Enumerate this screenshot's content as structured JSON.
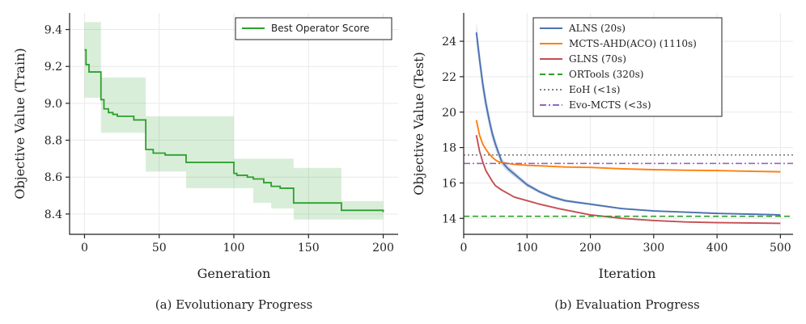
{
  "chart_data": [
    {
      "type": "line",
      "title": "",
      "caption": "(a) Evolutionary Progress",
      "xlabel": "Generation",
      "ylabel": "Objective Value (Train)",
      "xlim": [
        -10,
        210
      ],
      "ylim": [
        8.29,
        9.49
      ],
      "xticks": [
        0,
        50,
        100,
        150,
        200
      ],
      "xtick_labels": [
        "0",
        "50",
        "100",
        "150",
        "200"
      ],
      "yticks": [
        8.4,
        8.6,
        8.8,
        9.0,
        9.2,
        9.4
      ],
      "ytick_labels": [
        "8.4",
        "8.6",
        "8.8",
        "9.0",
        "9.2",
        "9.4"
      ],
      "grid": true,
      "legend_position": "top-right",
      "series": [
        {
          "name": "Best Operator Score",
          "color": "#2ca02c",
          "style": "step",
          "x": [
            0,
            1,
            3,
            11,
            13,
            16,
            19,
            22,
            28,
            33,
            40,
            41,
            46,
            50,
            54,
            58,
            68,
            100,
            102,
            109,
            113,
            116,
            120,
            125,
            130,
            131,
            140,
            170,
            172,
            200
          ],
          "y": [
            9.29,
            9.21,
            9.17,
            9.02,
            8.97,
            8.95,
            8.94,
            8.93,
            8.93,
            8.91,
            8.91,
            8.75,
            8.73,
            8.73,
            8.72,
            8.72,
            8.68,
            8.62,
            8.61,
            8.6,
            8.59,
            8.59,
            8.57,
            8.55,
            8.55,
            8.54,
            8.46,
            8.46,
            8.42,
            8.41
          ],
          "band_upper": [
            9.44,
            9.44,
            9.44,
            9.14,
            9.14,
            9.14,
            9.14,
            9.14,
            9.14,
            9.14,
            9.14,
            8.93,
            8.93,
            8.93,
            8.93,
            8.93,
            8.93,
            8.7,
            8.7,
            8.7,
            8.7,
            8.7,
            8.7,
            8.7,
            8.7,
            8.7,
            8.65,
            8.65,
            8.47,
            8.47
          ],
          "band_lower": [
            9.03,
            9.03,
            9.03,
            8.84,
            8.84,
            8.84,
            8.84,
            8.84,
            8.84,
            8.84,
            8.84,
            8.63,
            8.63,
            8.63,
            8.63,
            8.63,
            8.54,
            8.54,
            8.54,
            8.54,
            8.46,
            8.46,
            8.46,
            8.43,
            8.43,
            8.43,
            8.37,
            8.37,
            8.37,
            8.37
          ]
        }
      ]
    },
    {
      "type": "line",
      "title": "",
      "caption": "(b) Evaluation Progress",
      "xlabel": "Iteration",
      "ylabel": "Objective Value (Test)",
      "xlim": [
        0,
        520
      ],
      "ylim": [
        13.1,
        25.6
      ],
      "xticks": [
        0,
        100,
        200,
        300,
        400,
        500
      ],
      "xtick_labels": [
        "0",
        "100",
        "200",
        "300",
        "400",
        "500"
      ],
      "yticks": [
        14,
        16,
        18,
        20,
        22,
        24
      ],
      "ytick_labels": [
        "14",
        "16",
        "18",
        "20",
        "22",
        "24"
      ],
      "grid": true,
      "legend_position": "top-center",
      "series": [
        {
          "name": "ALNS (20s)",
          "color": "#4c72b0",
          "style": "solid",
          "band": true,
          "x": [
            20,
            25,
            30,
            35,
            40,
            45,
            50,
            55,
            60,
            70,
            80,
            90,
            100,
            120,
            140,
            160,
            180,
            200,
            250,
            300,
            350,
            400,
            450,
            500
          ],
          "y": [
            24.5,
            23.0,
            21.6,
            20.5,
            19.6,
            18.8,
            18.2,
            17.7,
            17.2,
            16.8,
            16.5,
            16.2,
            15.9,
            15.5,
            15.2,
            15.0,
            14.9,
            14.8,
            14.55,
            14.42,
            14.35,
            14.28,
            14.24,
            14.2
          ],
          "spread": [
            0.6,
            0.55,
            0.5,
            0.45,
            0.4,
            0.35,
            0.3,
            0.25,
            0.2,
            0.18,
            0.16,
            0.14,
            0.12,
            0.1,
            0.09,
            0.08,
            0.07,
            0.06,
            0.05,
            0.05,
            0.04,
            0.04,
            0.04,
            0.04
          ]
        },
        {
          "name": "MCTS-AHD(ACO) (1110s)",
          "color": "#ff7f0e",
          "style": "solid",
          "band": false,
          "x": [
            20,
            25,
            30,
            35,
            40,
            45,
            50,
            55,
            60,
            70,
            80,
            100,
            130,
            160,
            200,
            250,
            300,
            350,
            400,
            450,
            500
          ],
          "y": [
            19.55,
            18.7,
            18.2,
            17.9,
            17.65,
            17.45,
            17.3,
            17.2,
            17.15,
            17.1,
            17.05,
            17.0,
            16.95,
            16.9,
            16.88,
            16.8,
            16.75,
            16.72,
            16.7,
            16.66,
            16.63
          ]
        },
        {
          "name": "GLNS (70s)",
          "color": "#c44e52",
          "style": "solid",
          "band": false,
          "x": [
            20,
            25,
            30,
            35,
            40,
            45,
            50,
            60,
            70,
            80,
            100,
            120,
            150,
            200,
            250,
            300,
            350,
            400,
            450,
            500
          ],
          "y": [
            18.7,
            17.8,
            17.2,
            16.7,
            16.4,
            16.1,
            15.85,
            15.6,
            15.4,
            15.2,
            15.0,
            14.8,
            14.55,
            14.2,
            14.0,
            13.88,
            13.8,
            13.76,
            13.74,
            13.72
          ]
        },
        {
          "name": "ORTools (320s)",
          "color": "#2ca02c",
          "style": "dashed",
          "constant": 14.12
        },
        {
          "name": "EoH (<1s)",
          "color": "#7f7f7f",
          "style": "dotted",
          "constant": 17.58
        },
        {
          "name": "Evo-MCTS (<3s)",
          "color": "#9467bd",
          "style": "dashdot",
          "constant": 17.1
        }
      ]
    }
  ]
}
